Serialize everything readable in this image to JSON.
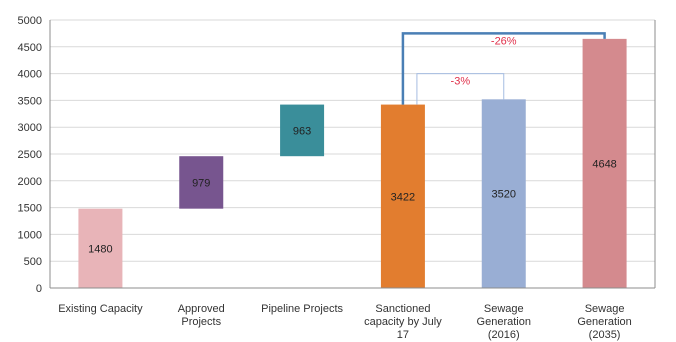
{
  "chart_data": {
    "type": "bar",
    "subtype": "waterfall",
    "title": "",
    "xlabel": "",
    "ylabel": "",
    "ylim": [
      0,
      5000
    ],
    "yticks": [
      0,
      500,
      1000,
      1500,
      2000,
      2500,
      3000,
      3500,
      4000,
      4500,
      5000
    ],
    "grid": true,
    "legend": "none",
    "bars": [
      {
        "category": [
          "Existing Capacity"
        ],
        "base": 0,
        "value": 1480,
        "label": "1480",
        "color": "#e8b4b8"
      },
      {
        "category": [
          "Approved",
          "Projects"
        ],
        "base": 1480,
        "value": 979,
        "label": "979",
        "color": "#77558f"
      },
      {
        "category": [
          "Pipeline Projects"
        ],
        "base": 2459,
        "value": 963,
        "label": "963",
        "color": "#3a8e9a"
      },
      {
        "category": [
          "Sanctioned",
          "capacity by July",
          "17"
        ],
        "base": 0,
        "value": 3422,
        "label": "3422",
        "color": "#e27d2f"
      },
      {
        "category": [
          "Sewage",
          "Generation",
          "(2016)"
        ],
        "base": 0,
        "value": 3520,
        "label": "3520",
        "color": "#99aed4"
      },
      {
        "category": [
          "Sewage",
          "Generation",
          "(2035)"
        ],
        "base": 0,
        "value": 4648,
        "label": "4648",
        "color": "#d48a8e"
      }
    ],
    "annotations": [
      {
        "from": 3,
        "to": 4,
        "text": "-3%",
        "color": "#a6bde2",
        "level": 4000
      },
      {
        "from": 3,
        "to": 5,
        "text": "-26%",
        "color": "#4a7fb5",
        "level": 4750
      }
    ]
  }
}
